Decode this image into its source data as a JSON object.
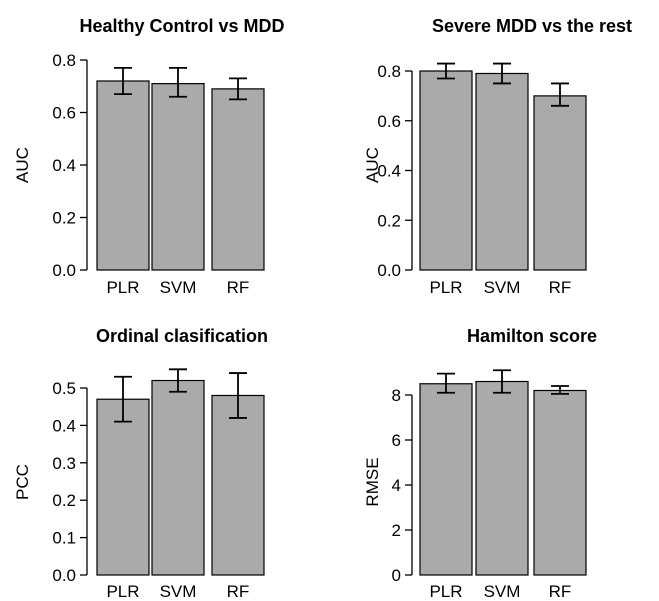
{
  "chart_data": [
    {
      "type": "bar",
      "title": "Healthy Control vs MDD",
      "ylabel": "AUC",
      "categories": [
        "PLR",
        "SVM",
        "RF"
      ],
      "values": [
        0.72,
        0.71,
        0.69
      ],
      "error_low": [
        0.67,
        0.66,
        0.65
      ],
      "error_high": [
        0.77,
        0.77,
        0.73
      ],
      "ylim": [
        0,
        0.8
      ],
      "yticks": [
        0.0,
        0.2,
        0.4,
        0.6,
        0.8
      ],
      "ytick_labels": [
        "0.0",
        "0.2",
        "0.4",
        "0.6",
        "0.8"
      ],
      "bar_color": "#aaaaaa"
    },
    {
      "type": "bar",
      "title": "Severe MDD vs the rest",
      "ylabel": "AUC",
      "categories": [
        "PLR",
        "SVM",
        "RF"
      ],
      "values": [
        0.8,
        0.79,
        0.7
      ],
      "error_low": [
        0.77,
        0.75,
        0.66
      ],
      "error_high": [
        0.83,
        0.83,
        0.75
      ],
      "ylim": [
        0,
        0.8
      ],
      "yticks": [
        0.0,
        0.2,
        0.4,
        0.6,
        0.8
      ],
      "ytick_labels": [
        "0.0",
        "0.2",
        "0.4",
        "0.6",
        "0.8"
      ],
      "bar_color": "#aaaaaa"
    },
    {
      "type": "bar",
      "title": "Ordinal clasification",
      "ylabel": "PCC",
      "categories": [
        "PLR",
        "SVM",
        "RF"
      ],
      "values": [
        0.47,
        0.52,
        0.48
      ],
      "error_low": [
        0.41,
        0.49,
        0.42
      ],
      "error_high": [
        0.53,
        0.55,
        0.54
      ],
      "ylim": [
        0,
        0.5
      ],
      "yticks": [
        0.0,
        0.1,
        0.2,
        0.3,
        0.4,
        0.5
      ],
      "ytick_labels": [
        "0.0",
        "0.1",
        "0.2",
        "0.3",
        "0.4",
        "0.5"
      ],
      "bar_color": "#aaaaaa"
    },
    {
      "type": "bar",
      "title": "Hamilton score",
      "ylabel": "RMSE",
      "categories": [
        "PLR",
        "SVM",
        "RF"
      ],
      "values": [
        8.5,
        8.6,
        8.2
      ],
      "error_low": [
        8.1,
        8.1,
        8.05
      ],
      "error_high": [
        8.95,
        9.1,
        8.4
      ],
      "ylim": [
        0,
        8
      ],
      "yticks": [
        0,
        2,
        4,
        6,
        8
      ],
      "ytick_labels": [
        "0",
        "2",
        "4",
        "6",
        "8"
      ],
      "bar_color": "#aaaaaa"
    }
  ]
}
